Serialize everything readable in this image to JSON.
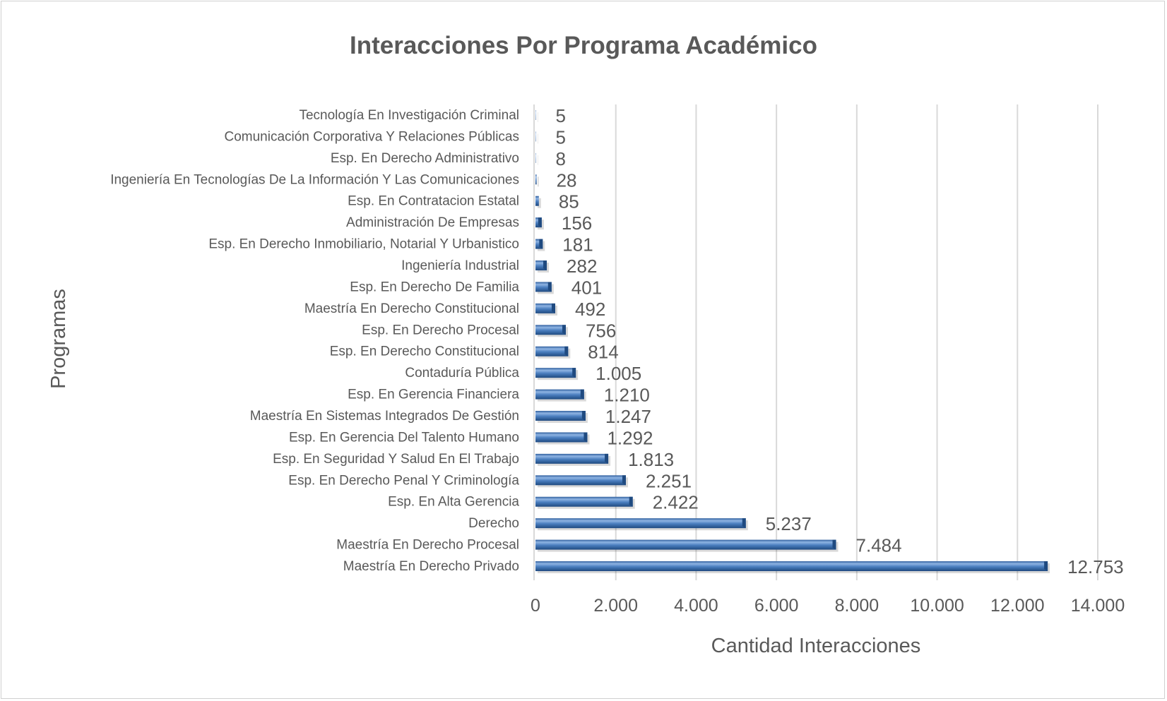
{
  "chart_data": {
    "type": "bar",
    "orientation": "horizontal",
    "title": "Interacciones Por Programa Académico",
    "xlabel": "Cantidad Interacciones",
    "ylabel": "Programas",
    "xlim": [
      0,
      14000
    ],
    "xticks": [
      0,
      2000,
      4000,
      6000,
      8000,
      10000,
      12000,
      14000
    ],
    "xtick_labels": [
      "0",
      "2.000",
      "4.000",
      "6.000",
      "8.000",
      "10.000",
      "12.000",
      "14.000"
    ],
    "grid": true,
    "categories": [
      "Tecnología En Investigación Criminal",
      "Comunicación Corporativa Y Relaciones Públicas",
      "Esp. En Derecho Administrativo",
      "Ingeniería En Tecnologías De La Información Y Las Comunicaciones",
      "Esp. En Contratacion Estatal",
      "Administración De Empresas",
      "Esp. En Derecho Inmobiliario, Notarial Y Urbanistico",
      "Ingeniería Industrial",
      "Esp. En Derecho De Familia",
      "Maestría En Derecho Constitucional",
      "Esp. En Derecho Procesal",
      "Esp. En Derecho Constitucional",
      "Contaduría Pública",
      "Esp. En Gerencia Financiera",
      "Maestría En Sistemas Integrados De Gestión",
      "Esp. En Gerencia Del Talento Humano",
      "Esp. En Seguridad Y Salud En El Trabajo",
      "Esp. En Derecho Penal Y Criminología",
      "Esp. En Alta Gerencia",
      "Derecho",
      "Maestría En Derecho Procesal",
      "Maestría En Derecho Privado"
    ],
    "values": [
      5,
      5,
      8,
      28,
      85,
      156,
      181,
      282,
      401,
      492,
      756,
      814,
      1005,
      1210,
      1247,
      1292,
      1813,
      2251,
      2422,
      5237,
      7484,
      12753
    ],
    "value_labels": [
      "5",
      "5",
      "8",
      "28",
      "85",
      "156",
      "181",
      "282",
      "401",
      "492",
      "756",
      "814",
      "1.005",
      "1.210",
      "1.247",
      "1.292",
      "1.813",
      "2.251",
      "2.422",
      "5.237",
      "7.484",
      "12.753"
    ],
    "colors": {
      "bar": "#4a7ebf",
      "bar_light": "#8fb4e3",
      "bar_dark": "#1f4a80",
      "grid": "#d9d9d9",
      "text": "#595959"
    }
  }
}
